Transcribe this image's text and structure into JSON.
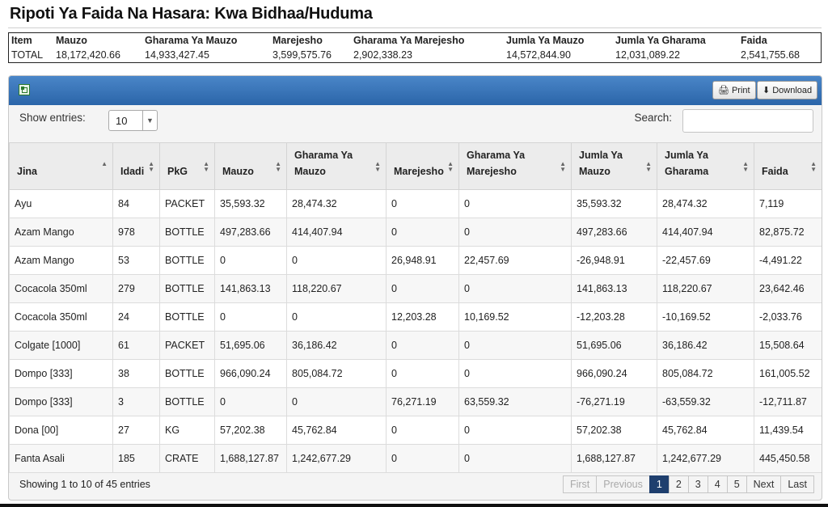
{
  "page": {
    "title": "Ripoti Ya Faida Na Hasara: Kwa Bidhaa/Huduma"
  },
  "summary": {
    "headers": [
      "Item",
      "Mauzo",
      "Gharama Ya Mauzo",
      "Marejesho",
      "Gharama Ya Marejesho",
      "Jumla Ya Mauzo",
      "Jumla Ya Gharama",
      "Faida"
    ],
    "values": [
      "TOTAL",
      "18,172,420.66",
      "14,933,427.45",
      "3,599,575.76",
      "2,902,338.23",
      "14,572,844.90",
      "12,031,089.22",
      "2,541,755.68"
    ]
  },
  "panel": {
    "print_label": "Print",
    "download_label": "Download",
    "export_icon": "excel-icon"
  },
  "controls": {
    "show_entries_label": "Show entries:",
    "entries_value": "10",
    "search_label": "Search:",
    "search_value": ""
  },
  "table": {
    "columns": [
      {
        "label": "Jina",
        "sort": "asc"
      },
      {
        "label": "Idadi",
        "sort": "both"
      },
      {
        "label": "PkG",
        "sort": "both"
      },
      {
        "label": "Mauzo",
        "sort": "both"
      },
      {
        "label": "Gharama Ya Mauzo",
        "sort": "both"
      },
      {
        "label": "Marejesho",
        "sort": "both"
      },
      {
        "label": "Gharama Ya Marejesho",
        "sort": "both"
      },
      {
        "label": "Jumla Ya Mauzo",
        "sort": "both"
      },
      {
        "label": "Jumla Ya Gharama",
        "sort": "both"
      },
      {
        "label": "Faida",
        "sort": "both"
      }
    ],
    "rows": [
      [
        "Ayu",
        "84",
        "PACKET",
        "35,593.32",
        "28,474.32",
        "0",
        "0",
        "35,593.32",
        "28,474.32",
        "7,119"
      ],
      [
        "Azam Mango",
        "978",
        "BOTTLE",
        "497,283.66",
        "414,407.94",
        "0",
        "0",
        "497,283.66",
        "414,407.94",
        "82,875.72"
      ],
      [
        "Azam Mango",
        "53",
        "BOTTLE",
        "0",
        "0",
        "26,948.91",
        "22,457.69",
        "-26,948.91",
        "-22,457.69",
        "-4,491.22"
      ],
      [
        "Cocacola 350ml",
        "279",
        "BOTTLE",
        "141,863.13",
        "118,220.67",
        "0",
        "0",
        "141,863.13",
        "118,220.67",
        "23,642.46"
      ],
      [
        "Cocacola 350ml",
        "24",
        "BOTTLE",
        "0",
        "0",
        "12,203.28",
        "10,169.52",
        "-12,203.28",
        "-10,169.52",
        "-2,033.76"
      ],
      [
        "Colgate [1000]",
        "61",
        "PACKET",
        "51,695.06",
        "36,186.42",
        "0",
        "0",
        "51,695.06",
        "36,186.42",
        "15,508.64"
      ],
      [
        "Dompo [333]",
        "38",
        "BOTTLE",
        "966,090.24",
        "805,084.72",
        "0",
        "0",
        "966,090.24",
        "805,084.72",
        "161,005.52"
      ],
      [
        "Dompo [333]",
        "3",
        "BOTTLE",
        "0",
        "0",
        "76,271.19",
        "63,559.32",
        "-76,271.19",
        "-63,559.32",
        "-12,711.87"
      ],
      [
        "Dona [00]",
        "27",
        "KG",
        "57,202.38",
        "45,762.84",
        "0",
        "0",
        "57,202.38",
        "45,762.84",
        "11,439.54"
      ],
      [
        "Fanta Asali",
        "185",
        "CRATE",
        "1,688,127.87",
        "1,242,677.29",
        "0",
        "0",
        "1,688,127.87",
        "1,242,677.29",
        "445,450.58"
      ]
    ]
  },
  "footer": {
    "info": "Showing 1 to 10 of 45 entries"
  },
  "pagination": {
    "items": [
      {
        "label": "First",
        "state": "disabled"
      },
      {
        "label": "Previous",
        "state": "disabled"
      },
      {
        "label": "1",
        "state": "active"
      },
      {
        "label": "2",
        "state": "normal"
      },
      {
        "label": "3",
        "state": "normal"
      },
      {
        "label": "4",
        "state": "normal"
      },
      {
        "label": "5",
        "state": "normal"
      },
      {
        "label": "Next",
        "state": "normal"
      },
      {
        "label": "Last",
        "state": "normal"
      }
    ]
  },
  "colors": {
    "header_blue": "#2b65a9",
    "active_page": "#1f3f6e"
  }
}
